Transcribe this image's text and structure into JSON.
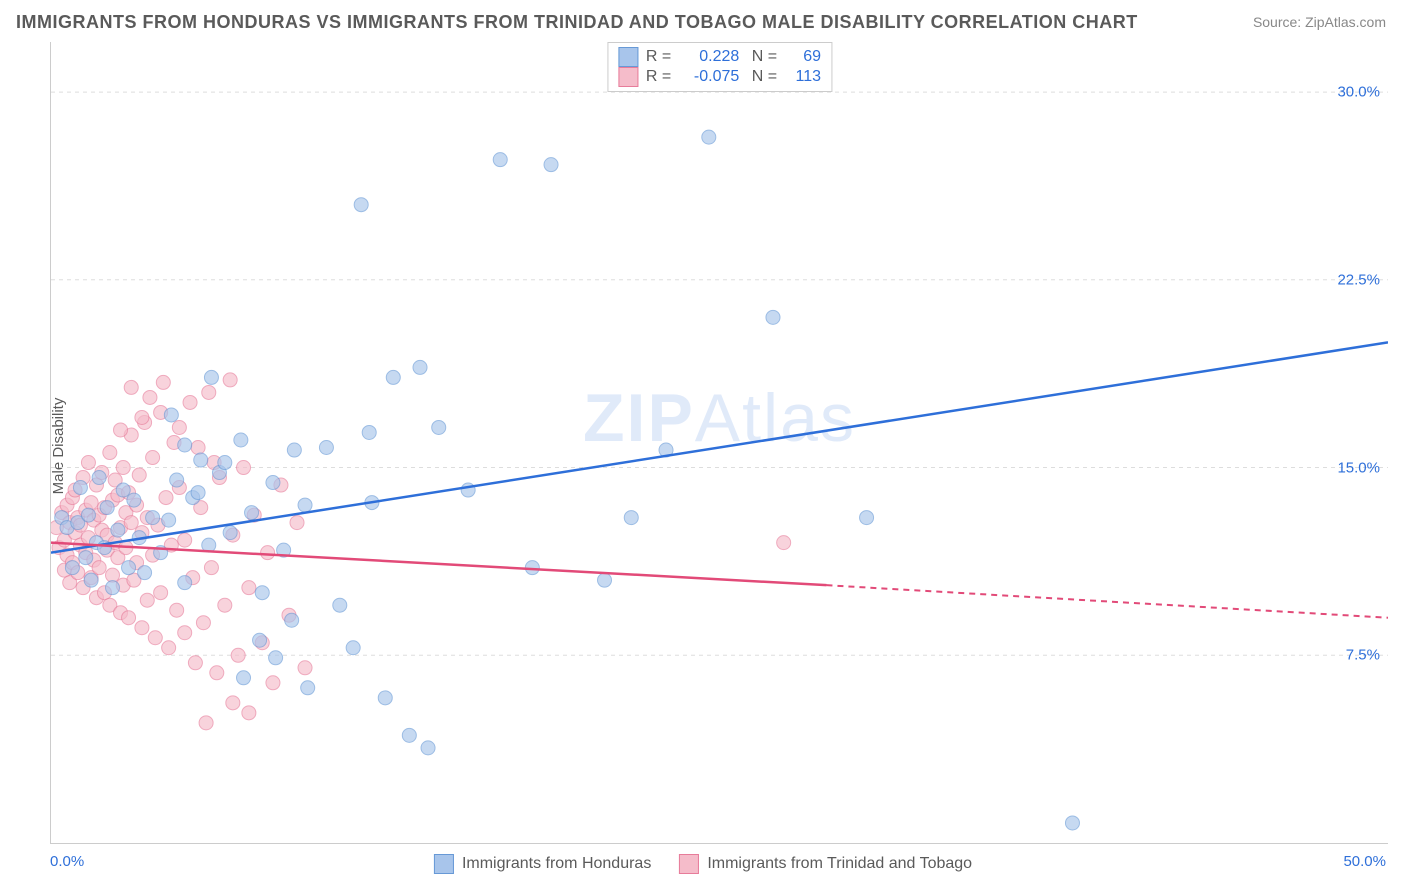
{
  "title": "IMMIGRANTS FROM HONDURAS VS IMMIGRANTS FROM TRINIDAD AND TOBAGO MALE DISABILITY CORRELATION CHART",
  "source": "Source: ZipAtlas.com",
  "ylabel": "Male Disability",
  "watermark_bold": "ZIP",
  "watermark_light": "Atlas",
  "chart": {
    "type": "scatter",
    "xlim": [
      0,
      50
    ],
    "ylim": [
      0,
      32
    ],
    "x_ticks": [
      {
        "v": 0,
        "label": "0.0%"
      },
      {
        "v": 50,
        "label": "50.0%"
      }
    ],
    "y_ticks": [
      {
        "v": 7.5,
        "label": "7.5%"
      },
      {
        "v": 15.0,
        "label": "15.0%"
      },
      {
        "v": 22.5,
        "label": "22.5%"
      },
      {
        "v": 30.0,
        "label": "30.0%"
      }
    ],
    "grid_color": "#dddddd",
    "background_color": "#ffffff",
    "series": [
      {
        "name": "Immigrants from Honduras",
        "color_fill": "#a8c5eb",
        "color_stroke": "#6799d6",
        "opacity": 0.65,
        "marker_radius": 7,
        "R": "0.228",
        "N": "69",
        "trend": {
          "x1": 0,
          "y1": 11.6,
          "x2": 50,
          "y2": 20.0,
          "color": "#2e6fd9",
          "dash_after_x": 50
        },
        "points": [
          [
            0.4,
            13.0
          ],
          [
            0.6,
            12.6
          ],
          [
            0.8,
            11.0
          ],
          [
            1.0,
            12.8
          ],
          [
            1.1,
            14.2
          ],
          [
            1.3,
            11.4
          ],
          [
            1.4,
            13.1
          ],
          [
            1.5,
            10.5
          ],
          [
            1.7,
            12.0
          ],
          [
            1.8,
            14.6
          ],
          [
            2.0,
            11.8
          ],
          [
            2.1,
            13.4
          ],
          [
            2.3,
            10.2
          ],
          [
            2.5,
            12.5
          ],
          [
            2.7,
            14.1
          ],
          [
            2.9,
            11.0
          ],
          [
            3.1,
            13.7
          ],
          [
            3.3,
            12.2
          ],
          [
            3.5,
            10.8
          ],
          [
            3.8,
            13.0
          ],
          [
            4.1,
            11.6
          ],
          [
            4.4,
            12.9
          ],
          [
            4.7,
            14.5
          ],
          [
            5.0,
            10.4
          ],
          [
            5.3,
            13.8
          ],
          [
            5.6,
            15.3
          ],
          [
            5.9,
            11.9
          ],
          [
            6.3,
            14.8
          ],
          [
            6.7,
            12.4
          ],
          [
            7.1,
            16.1
          ],
          [
            7.5,
            13.2
          ],
          [
            7.9,
            10.0
          ],
          [
            8.3,
            14.4
          ],
          [
            8.7,
            11.7
          ],
          [
            9.1,
            15.7
          ],
          [
            9.5,
            13.5
          ],
          [
            4.5,
            17.1
          ],
          [
            5.0,
            15.9
          ],
          [
            5.5,
            14.0
          ],
          [
            6.0,
            18.6
          ],
          [
            6.5,
            15.2
          ],
          [
            7.2,
            6.6
          ],
          [
            7.8,
            8.1
          ],
          [
            8.4,
            7.4
          ],
          [
            9.0,
            8.9
          ],
          [
            9.6,
            6.2
          ],
          [
            10.3,
            15.8
          ],
          [
            10.8,
            9.5
          ],
          [
            11.3,
            7.8
          ],
          [
            11.9,
            16.4
          ],
          [
            12.5,
            5.8
          ],
          [
            12.0,
            13.6
          ],
          [
            13.4,
            4.3
          ],
          [
            14.1,
            3.8
          ],
          [
            13.8,
            19.0
          ],
          [
            14.5,
            16.6
          ],
          [
            11.6,
            25.5
          ],
          [
            12.8,
            18.6
          ],
          [
            15.6,
            14.1
          ],
          [
            16.8,
            27.3
          ],
          [
            18.7,
            27.1
          ],
          [
            18.0,
            11.0
          ],
          [
            20.7,
            10.5
          ],
          [
            21.7,
            13.0
          ],
          [
            23.0,
            15.7
          ],
          [
            24.6,
            28.2
          ],
          [
            27.0,
            21.0
          ],
          [
            38.2,
            0.8
          ],
          [
            30.5,
            13.0
          ]
        ]
      },
      {
        "name": "Immigrants from Trinidad and Tobago",
        "color_fill": "#f5bcca",
        "color_stroke": "#e77c9a",
        "opacity": 0.65,
        "marker_radius": 7,
        "R": "-0.075",
        "N": "113",
        "trend": {
          "x1": 0,
          "y1": 12.0,
          "x2": 29,
          "y2": 10.3,
          "color": "#e24a78",
          "dash_after_x": 29,
          "x3": 50,
          "y3": 9.0
        },
        "points": [
          [
            0.2,
            12.6
          ],
          [
            0.3,
            11.8
          ],
          [
            0.4,
            13.2
          ],
          [
            0.5,
            12.1
          ],
          [
            0.5,
            10.9
          ],
          [
            0.6,
            13.5
          ],
          [
            0.6,
            11.5
          ],
          [
            0.7,
            12.8
          ],
          [
            0.7,
            10.4
          ],
          [
            0.8,
            13.8
          ],
          [
            0.8,
            11.2
          ],
          [
            0.9,
            12.4
          ],
          [
            0.9,
            14.1
          ],
          [
            1.0,
            10.8
          ],
          [
            1.0,
            13.0
          ],
          [
            1.1,
            11.9
          ],
          [
            1.1,
            12.7
          ],
          [
            1.2,
            14.6
          ],
          [
            1.2,
            10.2
          ],
          [
            1.3,
            13.3
          ],
          [
            1.3,
            11.6
          ],
          [
            1.4,
            12.2
          ],
          [
            1.4,
            15.2
          ],
          [
            1.5,
            10.6
          ],
          [
            1.5,
            13.6
          ],
          [
            1.6,
            11.3
          ],
          [
            1.6,
            12.9
          ],
          [
            1.7,
            14.3
          ],
          [
            1.7,
            9.8
          ],
          [
            1.8,
            13.1
          ],
          [
            1.8,
            11.0
          ],
          [
            1.9,
            12.5
          ],
          [
            1.9,
            14.8
          ],
          [
            2.0,
            10.0
          ],
          [
            2.0,
            13.4
          ],
          [
            2.1,
            11.7
          ],
          [
            2.1,
            12.3
          ],
          [
            2.2,
            15.6
          ],
          [
            2.2,
            9.5
          ],
          [
            2.3,
            13.7
          ],
          [
            2.3,
            10.7
          ],
          [
            2.4,
            12.0
          ],
          [
            2.4,
            14.5
          ],
          [
            2.5,
            11.4
          ],
          [
            2.5,
            13.9
          ],
          [
            2.6,
            9.2
          ],
          [
            2.6,
            12.6
          ],
          [
            2.7,
            15.0
          ],
          [
            2.7,
            10.3
          ],
          [
            2.8,
            13.2
          ],
          [
            2.8,
            11.8
          ],
          [
            2.9,
            14.0
          ],
          [
            2.9,
            9.0
          ],
          [
            3.0,
            12.8
          ],
          [
            3.0,
            16.3
          ],
          [
            3.1,
            10.5
          ],
          [
            3.2,
            13.5
          ],
          [
            3.2,
            11.2
          ],
          [
            3.3,
            14.7
          ],
          [
            3.4,
            8.6
          ],
          [
            3.4,
            12.4
          ],
          [
            3.5,
            16.8
          ],
          [
            3.6,
            9.7
          ],
          [
            3.6,
            13.0
          ],
          [
            3.8,
            11.5
          ],
          [
            3.8,
            15.4
          ],
          [
            3.9,
            8.2
          ],
          [
            4.0,
            12.7
          ],
          [
            4.1,
            17.2
          ],
          [
            4.1,
            10.0
          ],
          [
            4.3,
            13.8
          ],
          [
            4.4,
            7.8
          ],
          [
            4.5,
            11.9
          ],
          [
            4.6,
            16.0
          ],
          [
            4.7,
            9.3
          ],
          [
            4.8,
            14.2
          ],
          [
            5.0,
            8.4
          ],
          [
            5.0,
            12.1
          ],
          [
            5.2,
            17.6
          ],
          [
            5.3,
            10.6
          ],
          [
            5.4,
            7.2
          ],
          [
            5.6,
            13.4
          ],
          [
            5.7,
            8.8
          ],
          [
            5.9,
            18.0
          ],
          [
            6.0,
            11.0
          ],
          [
            6.2,
            6.8
          ],
          [
            6.3,
            14.6
          ],
          [
            6.5,
            9.5
          ],
          [
            6.7,
            18.5
          ],
          [
            6.8,
            12.3
          ],
          [
            7.0,
            7.5
          ],
          [
            7.2,
            15.0
          ],
          [
            7.4,
            10.2
          ],
          [
            7.4,
            5.2
          ],
          [
            7.6,
            13.1
          ],
          [
            7.9,
            8.0
          ],
          [
            8.1,
            11.6
          ],
          [
            8.3,
            6.4
          ],
          [
            8.6,
            14.3
          ],
          [
            8.9,
            9.1
          ],
          [
            9.2,
            12.8
          ],
          [
            9.5,
            7.0
          ],
          [
            4.2,
            18.4
          ],
          [
            3.7,
            17.8
          ],
          [
            2.6,
            16.5
          ],
          [
            3.0,
            18.2
          ],
          [
            3.4,
            17.0
          ],
          [
            4.8,
            16.6
          ],
          [
            5.5,
            15.8
          ],
          [
            6.1,
            15.2
          ],
          [
            5.8,
            4.8
          ],
          [
            6.8,
            5.6
          ],
          [
            27.4,
            12.0
          ]
        ]
      }
    ]
  },
  "bottom_legend": [
    {
      "label": "Immigrants from Honduras",
      "fill": "#a8c5eb",
      "stroke": "#6799d6"
    },
    {
      "label": "Immigrants from Trinidad and Tobago",
      "fill": "#f5bcca",
      "stroke": "#e77c9a"
    }
  ]
}
